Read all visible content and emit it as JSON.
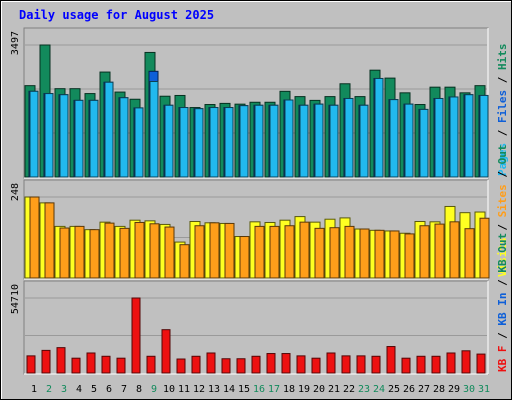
{
  "chart_data": {
    "type": "bar",
    "title": "Daily usage for August 2025",
    "categories": [
      "1",
      "2",
      "3",
      "4",
      "5",
      "6",
      "7",
      "8",
      "9",
      "10",
      "11",
      "12",
      "13",
      "14",
      "15",
      "16",
      "17",
      "18",
      "19",
      "20",
      "21",
      "22",
      "23",
      "24",
      "25",
      "26",
      "27",
      "28",
      "29",
      "30",
      "31"
    ],
    "weekend_days": [
      "2",
      "3",
      "9",
      "16",
      "17",
      "23",
      "24",
      "30",
      "31"
    ],
    "colors": {
      "hits": "#128a5c",
      "files": "#0e5fd8",
      "pages": "#21b9ef",
      "visits": "#ffff22",
      "sites": "#ff9e1a",
      "kbf": "#ee1111",
      "title": "#0000ff",
      "weekday_label": "#000000",
      "weekend_label": "#128a5c",
      "background": "#c0c0c0"
    },
    "panels": [
      {
        "max_label": "3497",
        "ymax": 3497,
        "legend": [
          {
            "text": "Pages",
            "color": "#21b9ef"
          },
          {
            "text": " / ",
            "color": "#000000"
          },
          {
            "text": "Files",
            "color": "#0e5fd8"
          },
          {
            "text": " / ",
            "color": "#000000"
          },
          {
            "text": "Hits",
            "color": "#128a5c"
          }
        ],
        "series": [
          {
            "name": "Hits",
            "values": [
              2420,
              3497,
              2340,
              2340,
              2210,
              2780,
              2250,
              2060,
              3300,
              2140,
              2160,
              1840,
              1920,
              1950,
              1930,
              1980,
              1980,
              2270,
              2130,
              2030,
              2130,
              2470,
              2130,
              2830,
              2620,
              2230,
              1920,
              2380,
              2380,
              2230,
              2420
            ]
          },
          {
            "name": "Files",
            "values": [
              2270,
              2210,
              2180,
              2030,
              2030,
              2510,
              2100,
              1830,
              2800,
              1900,
              1840,
              1810,
              1840,
              1840,
              1890,
              1900,
              1900,
              2040,
              1900,
              1930,
              1900,
              2080,
              1900,
              2610,
              2050,
              1930,
              1790,
              2080,
              2120,
              2180,
              2160
            ]
          },
          {
            "name": "Pages",
            "values": [
              2270,
              2210,
              2180,
              2030,
              2030,
              2510,
              2100,
              1830,
              2530,
              1900,
              1840,
              1810,
              1840,
              1840,
              1890,
              1900,
              1900,
              2040,
              1900,
              1930,
              1900,
              2080,
              1900,
              2610,
              2050,
              1930,
              1790,
              2080,
              2120,
              2180,
              2160
            ]
          }
        ]
      },
      {
        "max_label": "248",
        "ymax": 248,
        "legend": [
          {
            "text": "Visits",
            "color": "#ffff22"
          },
          {
            "text": " / ",
            "color": "#000000"
          },
          {
            "text": "Sites",
            "color": "#ff9e1a"
          },
          {
            "text": " / ",
            "color": "#000000"
          },
          {
            "text": "Out",
            "color": "#128a5c"
          }
        ],
        "series": [
          {
            "name": "Visits",
            "values": [
              248,
              230,
              158,
              158,
              148,
              171,
              158,
              177,
              175,
              164,
              110,
              173,
              169,
              167,
              127,
              172,
              170,
              177,
              188,
              171,
              180,
              184,
              150,
              146,
              144,
              137,
              173,
              172,
              219,
              200,
              202
            ]
          },
          {
            "name": "Sites",
            "values": [
              248,
              230,
              153,
              158,
              148,
              168,
              152,
              170,
              166,
              156,
              102,
              160,
              169,
              167,
              127,
              158,
              158,
              160,
              171,
              152,
              154,
              158,
              150,
              146,
              144,
              135,
              160,
              165,
              172,
              151,
              183
            ]
          }
        ]
      },
      {
        "max_label": "54710",
        "ymax": 54710,
        "legend": [
          {
            "text": "KB F",
            "color": "#ee1111"
          },
          {
            "text": " / ",
            "color": "#000000"
          },
          {
            "text": "KB In",
            "color": "#0e5fd8"
          },
          {
            "text": " / ",
            "color": "#000000"
          },
          {
            "text": "KB Out",
            "color": "#128a5c"
          }
        ],
        "series": [
          {
            "name": "KB F",
            "values": [
              12500,
              16500,
              18500,
              10800,
              14600,
              12200,
              10800,
              54710,
              12200,
              31600,
              10200,
              12200,
              14600,
              10400,
              10400,
              12200,
              14200,
              14200,
              12500,
              10800,
              14600,
              12500,
              12500,
              12200,
              19300,
              10800,
              12200,
              12200,
              14600,
              16200,
              13800
            ]
          }
        ]
      }
    ]
  }
}
